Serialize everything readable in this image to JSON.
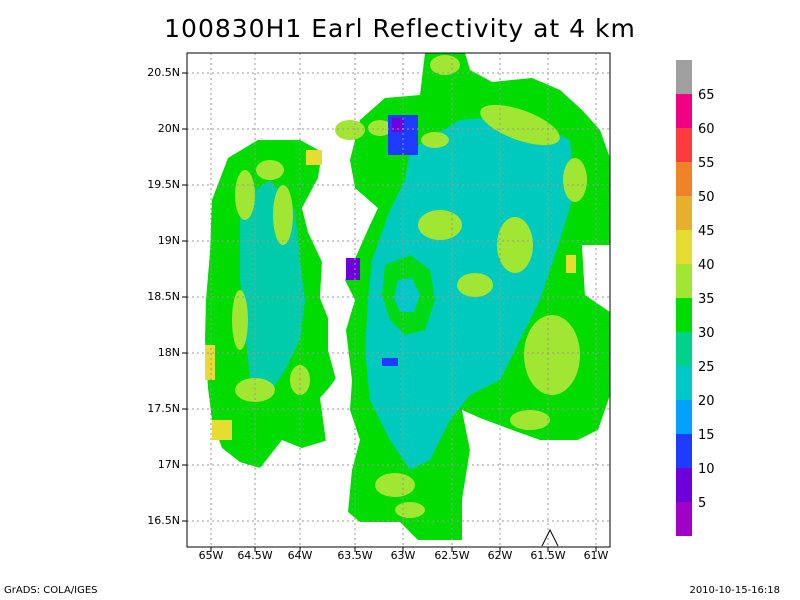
{
  "title": "100830H1 Earl Reflectivity at 4 km",
  "lat_ticks": [
    "20.5N",
    "20N",
    "19.5N",
    "19N",
    "18.5N",
    "18N",
    "17.5N",
    "17N",
    "16.5N"
  ],
  "lon_ticks": [
    "65W",
    "64.5W",
    "64W",
    "63.5W",
    "63W",
    "62.5W",
    "62W",
    "61.5W",
    "61W"
  ],
  "colorbar": {
    "labels": [
      "65",
      "60",
      "55",
      "50",
      "45",
      "40",
      "35",
      "30",
      "25",
      "20",
      "15",
      "10",
      "5"
    ],
    "colors": [
      "#a0a0a0",
      "#f00082",
      "#fa3c3c",
      "#f08228",
      "#e6af2d",
      "#e6dc32",
      "#a0e632",
      "#00dc00",
      "#00d28c",
      "#00c8c8",
      "#00a0ff",
      "#1e3cff",
      "#6e00dc",
      "#a000c8"
    ]
  },
  "footer": {
    "left": "GrADS: COLA/IGES",
    "right": "2010-10-15-16:18"
  }
}
